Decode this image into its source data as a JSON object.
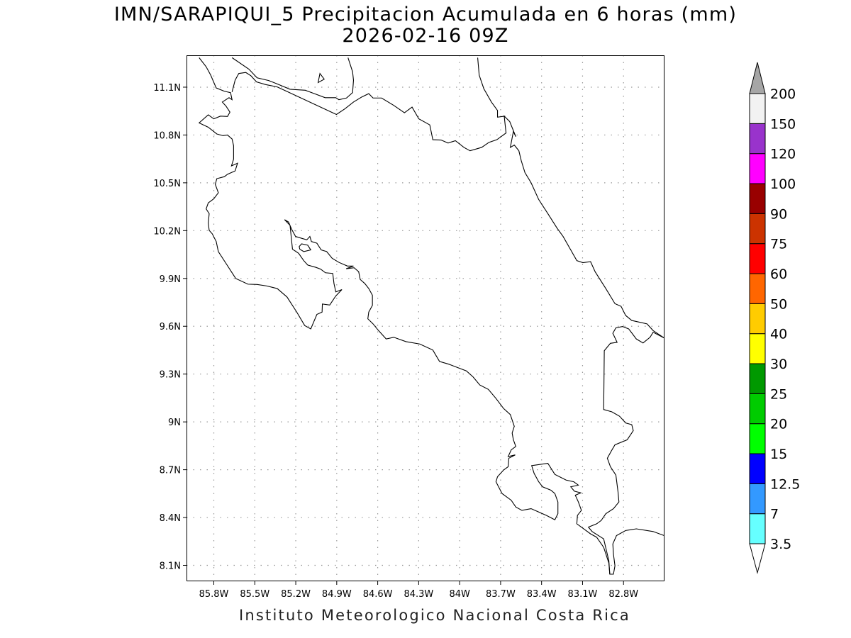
{
  "title": {
    "line1": "IMN/SARAPIQUI_5 Precipitacion Acumulada en 6 horas (mm)",
    "line2": "2026-02-16 09Z"
  },
  "map": {
    "lon_range": [
      -86.0,
      -82.5
    ],
    "lat_range": [
      8.0,
      11.3
    ],
    "grid": "dotted",
    "lon_ticks": [
      {
        "value": -85.8,
        "label": "85.8W"
      },
      {
        "value": -85.5,
        "label": "85.5W"
      },
      {
        "value": -85.2,
        "label": "85.2W"
      },
      {
        "value": -84.9,
        "label": "84.9W"
      },
      {
        "value": -84.6,
        "label": "84.6W"
      },
      {
        "value": -84.3,
        "label": "84.3W"
      },
      {
        "value": -84.0,
        "label": "84W"
      },
      {
        "value": -83.7,
        "label": "83.7W"
      },
      {
        "value": -83.4,
        "label": "83.4W"
      },
      {
        "value": -83.1,
        "label": "83.1W"
      },
      {
        "value": -82.8,
        "label": "82.8W"
      }
    ],
    "lat_ticks": [
      {
        "value": 11.1,
        "label": "11.1N"
      },
      {
        "value": 10.8,
        "label": "10.8N"
      },
      {
        "value": 10.5,
        "label": "10.5N"
      },
      {
        "value": 10.2,
        "label": "10.2N"
      },
      {
        "value": 9.9,
        "label": "9.9N"
      },
      {
        "value": 9.6,
        "label": "9.6N"
      },
      {
        "value": 9.3,
        "label": "9.3N"
      },
      {
        "value": 9.0,
        "label": "9N"
      },
      {
        "value": 8.7,
        "label": "8.7N"
      },
      {
        "value": 8.4,
        "label": "8.4N"
      },
      {
        "value": 8.1,
        "label": "8.1N"
      }
    ],
    "coastline_color": "#000000",
    "precipitation_shown": "none"
  },
  "colorbar": {
    "labels": [
      "3.5",
      "7",
      "12.5",
      "15",
      "20",
      "25",
      "30",
      "40",
      "50",
      "60",
      "75",
      "90",
      "100",
      "120",
      "150",
      "200"
    ],
    "colors": [
      "#66ffff",
      "#3399ff",
      "#0000ff",
      "#00ff00",
      "#00cc00",
      "#009900",
      "#ffff00",
      "#ffcc00",
      "#ff6600",
      "#ff0000",
      "#cc3300",
      "#990000",
      "#ff00ff",
      "#9933cc",
      "#f2f2f2"
    ],
    "below_color": "#ffffff",
    "above_color": "#a6a6a6"
  },
  "footer": "Instituto Meteorologico Nacional Costa Rica"
}
